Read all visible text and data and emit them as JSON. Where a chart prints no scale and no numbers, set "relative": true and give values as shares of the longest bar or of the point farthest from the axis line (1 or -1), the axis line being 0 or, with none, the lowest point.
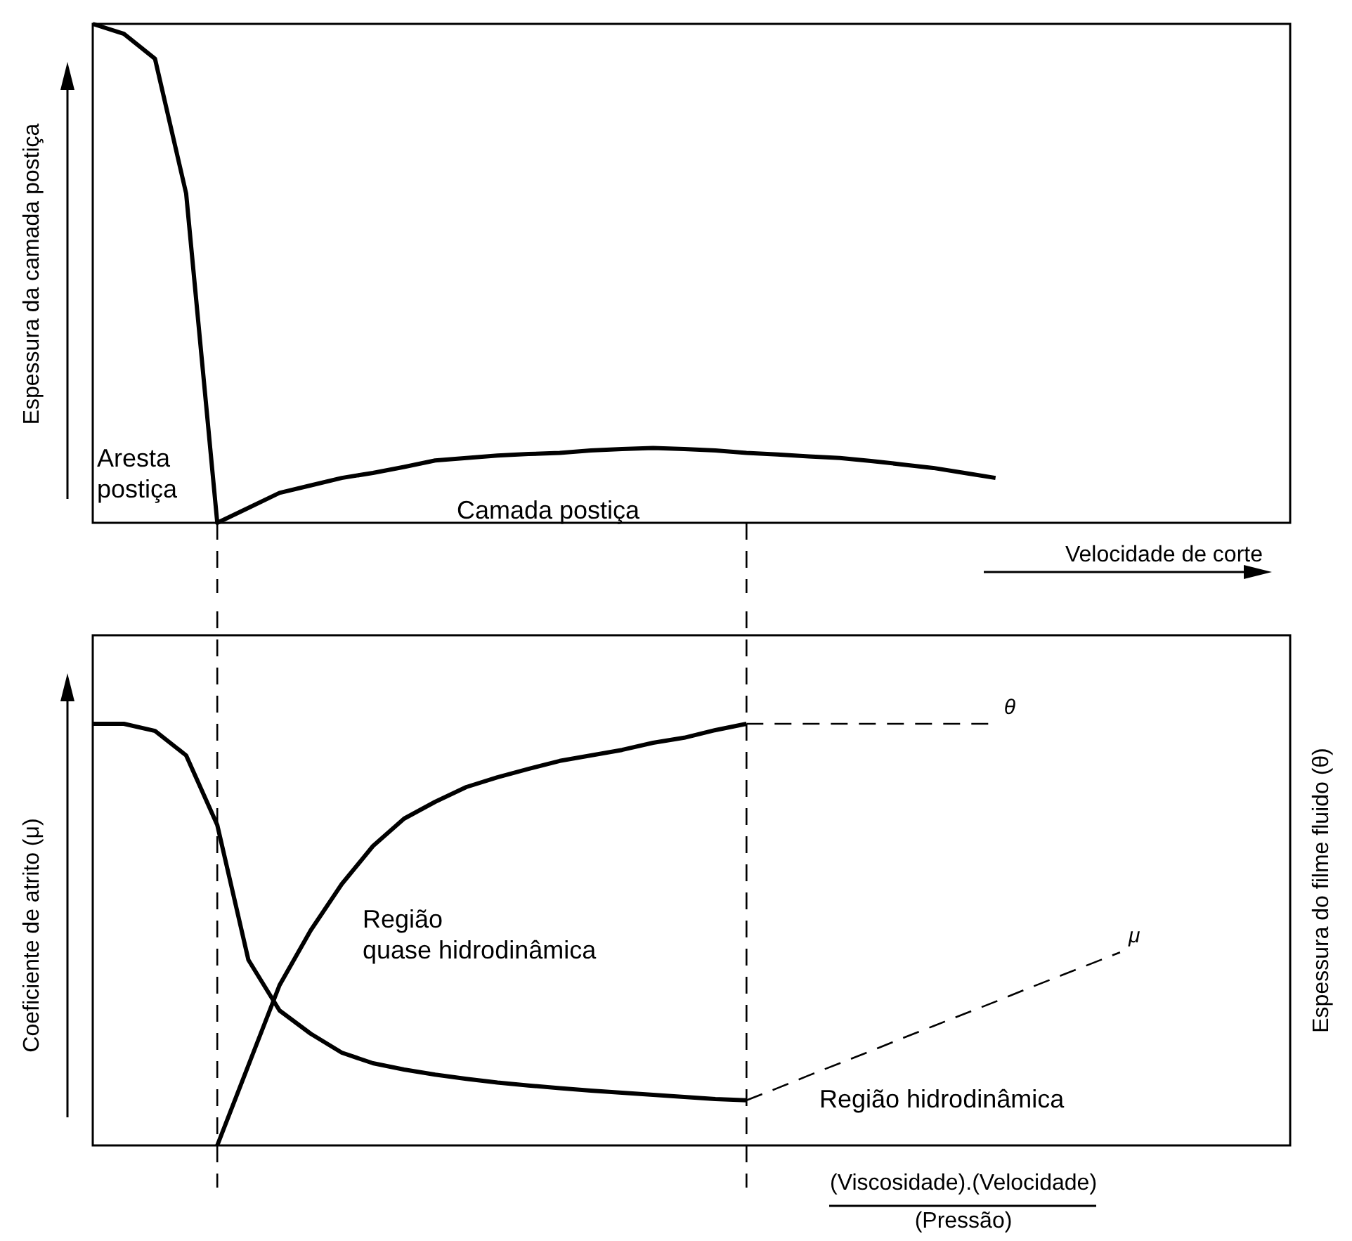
{
  "chart_data": [
    {
      "type": "line",
      "relative": true,
      "ylabel": "Espessura da camada postiça",
      "xlabel": "Velocidade de corte",
      "tick_labels": false,
      "categories": [
        null,
        null,
        null,
        null,
        null,
        null,
        null,
        null,
        null,
        null,
        null,
        null,
        null,
        null,
        null,
        null,
        null,
        null,
        null,
        null,
        null,
        null,
        null,
        null,
        null,
        null,
        null,
        null,
        null,
        null,
        null,
        null,
        null,
        null,
        null,
        null,
        null,
        null,
        null
      ],
      "series": [
        {
          "color": "#000000",
          "line_style": "solid",
          "values": [
            1,
            0.98,
            0.93,
            0.66,
            0,
            0.03,
            0.06,
            0.075,
            0.09,
            0.1,
            0.112,
            0.125,
            0.13,
            0.135,
            0.138,
            0.14,
            0.145,
            0.148,
            0.15,
            0.148,
            0.145,
            0.14,
            0.137,
            0.133,
            0.13,
            0.124,
            0.117,
            0.11,
            0.1,
            0.09,
            null,
            null,
            null,
            null,
            null,
            null,
            null,
            null,
            null
          ]
        }
      ],
      "annotations": [
        "Aresta\npostiça",
        "Camada postiça"
      ]
    },
    {
      "type": "line",
      "relative": true,
      "ylabel": "Coeficiente de atrito (μ)",
      "y2label": "Espessura do filme fluido (θ)",
      "xlabel": "(Viscosidade).(Velocidade)\n(Pressão)",
      "tick_labels": false,
      "categories": [
        null,
        null,
        null,
        null,
        null,
        null,
        null,
        null,
        null,
        null,
        null,
        null,
        null,
        null,
        null,
        null,
        null,
        null,
        null,
        null,
        null,
        null,
        null,
        null,
        null,
        null,
        null,
        null,
        null,
        null,
        null,
        null,
        null,
        null,
        null,
        null,
        null,
        null,
        null
      ],
      "series": [
        {
          "color": "#000000",
          "line_style": "solid",
          "values": [
            1,
            1,
            0.983,
            0.925,
            0.76,
            0.44,
            0.32,
            0.265,
            0.22,
            0.195,
            0.18,
            0.168,
            0.158,
            0.149,
            0.142,
            0.136,
            0.13,
            0.125,
            0.12,
            0.115,
            0.11,
            0.107,
            null,
            null,
            null,
            null,
            null,
            null,
            null,
            null,
            null,
            null,
            null,
            null,
            null,
            null,
            null,
            null,
            null
          ]
        },
        {
          "name": "μ",
          "color": "#000000",
          "line_style": "dashed",
          "values": [
            null,
            null,
            null,
            null,
            null,
            null,
            null,
            null,
            null,
            null,
            null,
            null,
            null,
            null,
            null,
            null,
            null,
            null,
            null,
            null,
            null,
            0.107,
            0.136,
            0.166,
            0.195,
            0.224,
            0.254,
            0.283,
            0.312,
            0.341,
            0.371,
            0.4,
            0.429,
            0.458,
            null,
            null,
            null,
            null,
            null
          ]
        },
        {
          "color": "#000000",
          "line_style": "solid",
          "values": [
            null,
            null,
            null,
            null,
            0,
            0.19,
            0.38,
            0.51,
            0.62,
            0.71,
            0.775,
            0.815,
            0.85,
            0.873,
            0.893,
            0.912,
            0.925,
            0.938,
            0.955,
            0.967,
            0.985,
            1,
            null,
            null,
            null,
            null,
            null,
            null,
            null,
            null,
            null,
            null,
            null,
            null,
            null,
            null,
            null,
            null,
            null
          ]
        },
        {
          "name": "θ",
          "color": "#000000",
          "line_style": "dashed",
          "values": [
            null,
            null,
            null,
            null,
            null,
            null,
            null,
            null,
            null,
            null,
            null,
            null,
            null,
            null,
            null,
            null,
            null,
            null,
            null,
            null,
            null,
            1,
            1,
            1,
            1,
            1,
            1,
            1,
            1,
            1,
            null,
            null,
            null,
            null,
            null,
            null,
            null,
            null,
            null
          ]
        }
      ],
      "annotations": [
        "Região\nquase hidrodinâmica",
        "Região hidrodinâmica"
      ]
    }
  ]
}
